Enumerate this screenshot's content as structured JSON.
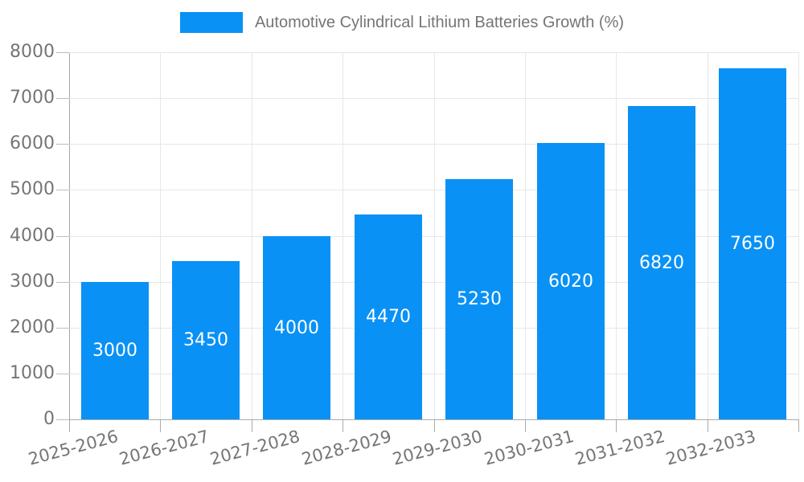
{
  "legend": {
    "label": "Automotive Cylindrical Lithium Batteries Growth (%)",
    "swatch_color": "#0991f5"
  },
  "chart_data": {
    "type": "bar",
    "title": "Automotive Cylindrical Lithium Batteries Growth (%)",
    "categories": [
      "2025-2026",
      "2026-2027",
      "2027-2028",
      "2028-2029",
      "2029-2030",
      "2030-2031",
      "2031-2032",
      "2032-2033"
    ],
    "values": [
      3000,
      3450,
      4000,
      4470,
      5230,
      6020,
      6820,
      7650
    ],
    "xlabel": "",
    "ylabel": "",
    "ylim": [
      0,
      8000
    ],
    "yticks": [
      0,
      1000,
      2000,
      3000,
      4000,
      5000,
      6000,
      7000,
      8000
    ],
    "grid": true,
    "vertical_gridlines": true,
    "legend_position": "top-center",
    "bar_color": "#0991f5",
    "bar_value_label_color": "#ffffff",
    "value_labels_inside": "middle",
    "axis_text_color": "#757575",
    "gridline_color": "#e7e7e7",
    "axis_line_color": "#a6a6a6",
    "x_label_rotation_deg": -15
  }
}
